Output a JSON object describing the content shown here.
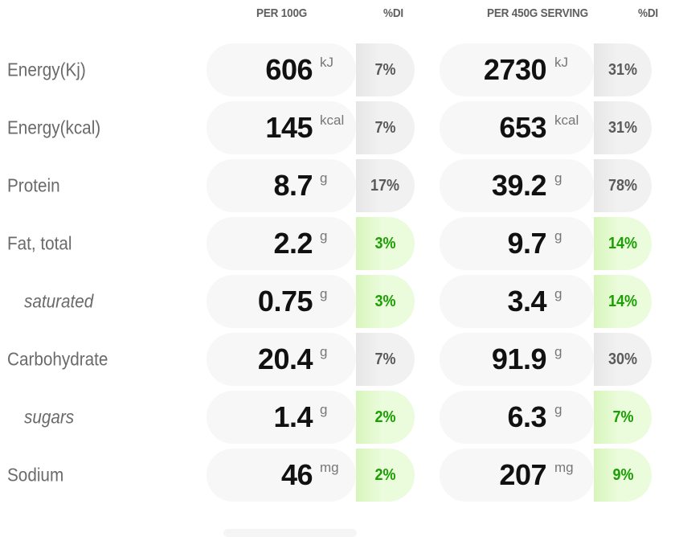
{
  "headers": {
    "per_100g": "PER 100G",
    "di_100g": "%DI",
    "per_serving": "PER 450G SERVING",
    "di_serving": "%DI"
  },
  "rows": [
    {
      "label": "Energy(Kj)",
      "sub": false,
      "v100": "606",
      "u100": "kJ",
      "di100": "7%",
      "di100_green": false,
      "vserv": "2730",
      "userv": "kJ",
      "diserv": "31%",
      "diserv_green": false
    },
    {
      "label": "Energy(kcal)",
      "sub": false,
      "v100": "145",
      "u100": "kcal",
      "di100": "7%",
      "di100_green": false,
      "vserv": "653",
      "userv": "kcal",
      "diserv": "31%",
      "diserv_green": false
    },
    {
      "label": "Protein",
      "sub": false,
      "v100": "8.7",
      "u100": "g",
      "di100": "17%",
      "di100_green": false,
      "vserv": "39.2",
      "userv": "g",
      "diserv": "78%",
      "diserv_green": false
    },
    {
      "label": "Fat, total",
      "sub": false,
      "v100": "2.2",
      "u100": "g",
      "di100": "3%",
      "di100_green": true,
      "vserv": "9.7",
      "userv": "g",
      "diserv": "14%",
      "diserv_green": true
    },
    {
      "label": "saturated",
      "sub": true,
      "v100": "0.75",
      "u100": "g",
      "di100": "3%",
      "di100_green": true,
      "vserv": "3.4",
      "userv": "g",
      "diserv": "14%",
      "diserv_green": true
    },
    {
      "label": "Carbohydrate",
      "sub": false,
      "v100": "20.4",
      "u100": "g",
      "di100": "7%",
      "di100_green": false,
      "vserv": "91.9",
      "userv": "g",
      "diserv": "30%",
      "diserv_green": false
    },
    {
      "label": "sugars",
      "sub": true,
      "v100": "1.4",
      "u100": "g",
      "di100": "2%",
      "di100_green": true,
      "vserv": "6.3",
      "userv": "g",
      "diserv": "7%",
      "diserv_green": true
    },
    {
      "label": "Sodium",
      "sub": false,
      "v100": "46",
      "u100": "mg",
      "di100": "2%",
      "di100_green": true,
      "vserv": "207",
      "userv": "mg",
      "diserv": "9%",
      "diserv_green": true
    }
  ],
  "colors": {
    "green_text": "#19a000",
    "green_bg": "#d8f5bc",
    "grey_bg": "#e6e6e6",
    "pill_bg": "#f7f7f7"
  }
}
